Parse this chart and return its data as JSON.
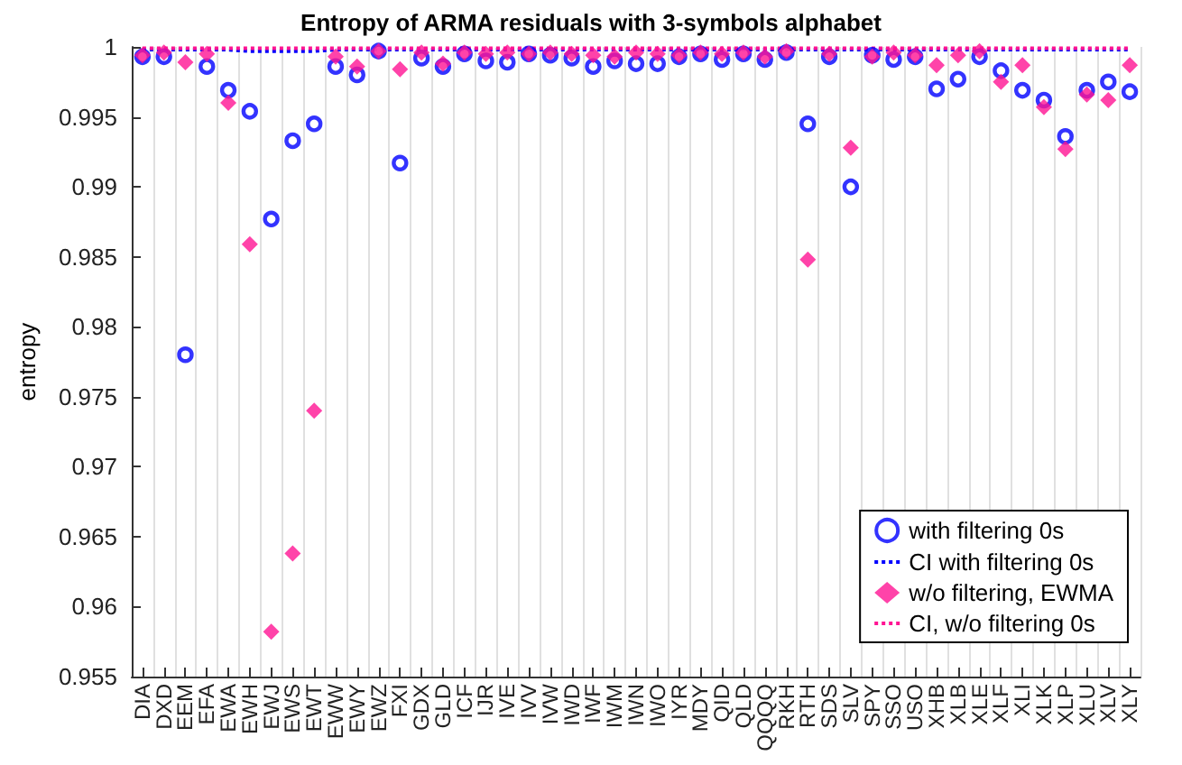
{
  "chart_data": {
    "type": "scatter",
    "title": "Entropy of ARMA residuals with 3-symbols alphabet",
    "ylabel": "entropy",
    "categories": [
      "DIA",
      "DXD",
      "EEM",
      "EFA",
      "EWA",
      "EWH",
      "EWJ",
      "EWS",
      "EWT",
      "EWW",
      "EWY",
      "EWZ",
      "FXI",
      "GDX",
      "GLD",
      "ICF",
      "IJR",
      "IVE",
      "IVV",
      "IVW",
      "IWD",
      "IWF",
      "IWM",
      "IWN",
      "IWO",
      "IYR",
      "MDY",
      "QID",
      "QLD",
      "QQQQ",
      "RKH",
      "RTH",
      "SDS",
      "SLV",
      "SPY",
      "SSO",
      "USO",
      "XHB",
      "XLB",
      "XLE",
      "XLF",
      "XLI",
      "XLK",
      "XLP",
      "XLU",
      "XLV",
      "XLY"
    ],
    "series": [
      {
        "name": "with filtering 0s",
        "marker": "circle",
        "color": "#0000ff",
        "values": [
          0.9993,
          0.9993,
          0.978,
          0.9986,
          0.9969,
          0.9954,
          0.9877,
          0.9933,
          0.9945,
          0.9986,
          0.998,
          0.9997,
          0.9917,
          0.9992,
          0.9986,
          0.9995,
          0.999,
          0.9989,
          0.9995,
          0.9994,
          0.9992,
          0.9986,
          0.999,
          0.9988,
          0.9988,
          0.9993,
          0.9995,
          0.9991,
          0.9995,
          0.9991,
          0.9996,
          0.9945,
          0.9993,
          0.99,
          0.9994,
          0.9991,
          0.9993,
          0.997,
          0.9977,
          0.9993,
          0.9983,
          0.9969,
          0.9962,
          0.9936,
          0.9969,
          0.9975,
          0.9968
        ]
      },
      {
        "name": "CI with filtering 0s",
        "type": "line",
        "marker": "none",
        "line_style": "dotted",
        "color": "#0000ff",
        "values": [
          0.9998,
          0.9998,
          0.9998,
          0.9998,
          0.9998,
          0.9997,
          0.9997,
          0.9997,
          0.9997,
          0.9998,
          0.9998,
          0.9998,
          0.9998,
          0.9998,
          0.9998,
          0.9998,
          0.9998,
          0.9998,
          0.9998,
          0.9998,
          0.9998,
          0.9998,
          0.9998,
          0.9998,
          0.9998,
          0.9998,
          0.9998,
          0.9998,
          0.9998,
          0.9998,
          0.9998,
          0.9998,
          0.9998,
          0.9998,
          0.9998,
          0.9998,
          0.9998,
          0.9998,
          0.9998,
          0.9998,
          0.9998,
          0.9998,
          0.9998,
          0.9998,
          0.9998,
          0.9998,
          0.9998
        ]
      },
      {
        "name": "w/o filtering, EWMA",
        "marker": "diamond",
        "color": "#ff1493",
        "values": [
          0.9994,
          0.9996,
          0.9989,
          0.9995,
          0.996,
          0.9859,
          0.9582,
          0.9638,
          0.974,
          0.9993,
          0.9986,
          0.9997,
          0.9984,
          0.9996,
          0.9988,
          0.9996,
          0.9995,
          0.9996,
          0.9995,
          0.9996,
          0.9995,
          0.9994,
          0.9993,
          0.9996,
          0.9995,
          0.9994,
          0.9996,
          0.9995,
          0.9996,
          0.9993,
          0.9997,
          0.9848,
          0.9995,
          0.9928,
          0.9993,
          0.9996,
          0.9994,
          0.9987,
          0.9994,
          0.9997,
          0.9975,
          0.9987,
          0.9957,
          0.9927,
          0.9966,
          0.9962,
          0.9987
        ]
      },
      {
        "name": "CI, w/o filtering 0s",
        "type": "line",
        "marker": "none",
        "line_style": "dotted",
        "color": "#ff1493",
        "values": [
          0.9999,
          0.9999,
          0.9999,
          0.9999,
          0.9999,
          0.9999,
          0.9999,
          0.9999,
          0.9999,
          0.9999,
          0.9999,
          0.9999,
          0.9999,
          0.9999,
          0.9999,
          0.9999,
          0.9999,
          0.9999,
          0.9999,
          0.9999,
          0.9999,
          0.9999,
          0.9999,
          0.9999,
          0.9999,
          0.9999,
          0.9999,
          0.9999,
          0.9999,
          0.9999,
          0.9999,
          0.9999,
          0.9999,
          0.9999,
          0.9999,
          0.9999,
          0.9999,
          0.9999,
          0.9999,
          0.9999,
          0.9999,
          0.9999,
          0.9999,
          0.9999,
          0.9999,
          0.9999,
          0.9999
        ]
      }
    ],
    "ylim": [
      0.955,
      1
    ],
    "yticks": [
      0.955,
      0.96,
      0.965,
      0.97,
      0.975,
      0.98,
      0.985,
      0.99,
      0.995,
      1
    ],
    "grid": "x",
    "legend": "bottom right"
  }
}
